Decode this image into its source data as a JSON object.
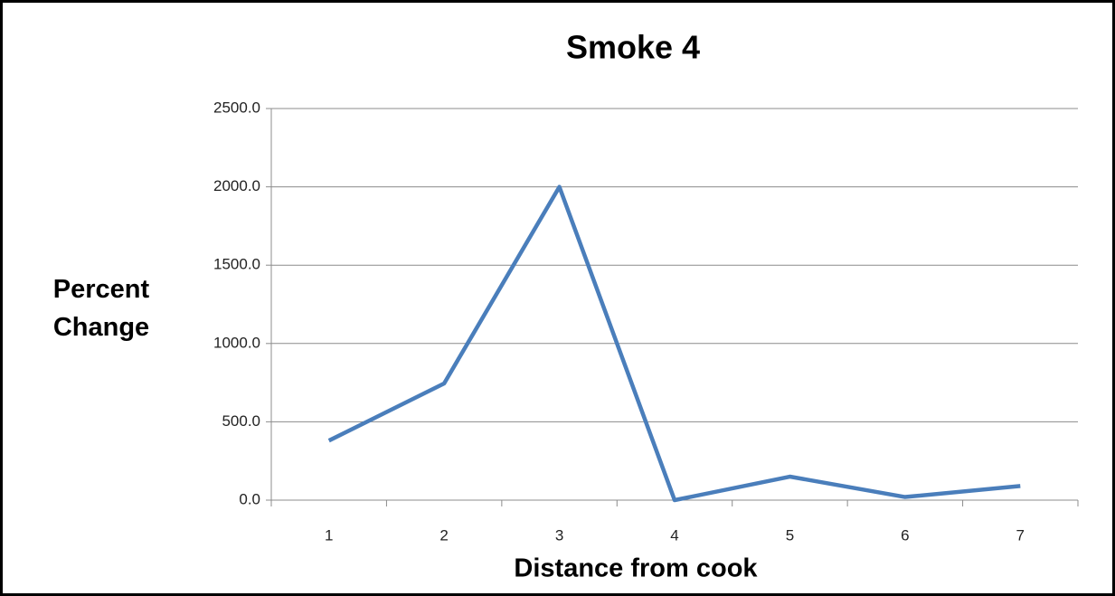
{
  "chart_data": {
    "type": "line",
    "title": "Smoke 4",
    "xlabel": "Distance from cook",
    "ylabel": "Percent Change",
    "categories": [
      "1",
      "2",
      "3",
      "4",
      "5",
      "6",
      "7"
    ],
    "series": [
      {
        "name": "Smoke 4",
        "color": "#4a7ebb",
        "values": [
          380,
          745,
          2000,
          0,
          150,
          20,
          90
        ]
      }
    ],
    "ylim": [
      0,
      2500
    ],
    "yticks": [
      {
        "value": 0,
        "label": "0.0"
      },
      {
        "value": 500,
        "label": "500.0"
      },
      {
        "value": 1000,
        "label": "1000.0"
      },
      {
        "value": 1500,
        "label": "1500.0"
      },
      {
        "value": 2000,
        "label": "2000.0"
      },
      {
        "value": 2500,
        "label": "2500.0"
      }
    ],
    "grid": true
  }
}
